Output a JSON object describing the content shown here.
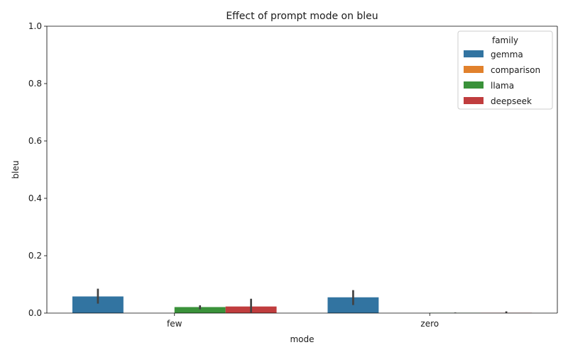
{
  "chart_data": {
    "type": "bar",
    "title": "Effect of prompt mode on bleu",
    "xlabel": "mode",
    "ylabel": "bleu",
    "ylim": [
      0,
      1.0
    ],
    "yticks": [
      0.0,
      0.2,
      0.4,
      0.6,
      0.8,
      1.0
    ],
    "ytick_labels": [
      "0.0",
      "0.2",
      "0.4",
      "0.6",
      "0.8",
      "1.0"
    ],
    "categories": [
      "few",
      "zero"
    ],
    "legend": {
      "title": "family",
      "placement": "top-right"
    },
    "series": [
      {
        "name": "gemma",
        "color": "#3274a1",
        "values": [
          0.058,
          0.055
        ],
        "ci": [
          [
            0.033,
            0.085
          ],
          [
            0.028,
            0.08
          ]
        ]
      },
      {
        "name": "comparison",
        "color": "#e1812c",
        "values": [
          0.0,
          0.0
        ],
        "ci": [
          [
            0.0,
            0.0
          ],
          [
            0.0,
            0.0
          ]
        ]
      },
      {
        "name": "llama",
        "color": "#3a923a",
        "values": [
          0.021,
          0.001
        ],
        "ci": [
          [
            0.013,
            0.027
          ],
          [
            0.0,
            0.002
          ]
        ]
      },
      {
        "name": "deepseek",
        "color": "#c03d3e",
        "values": [
          0.023,
          0.001
        ],
        "ci": [
          [
            0.002,
            0.05
          ],
          [
            0.0,
            0.006
          ]
        ]
      }
    ],
    "grid": false
  }
}
